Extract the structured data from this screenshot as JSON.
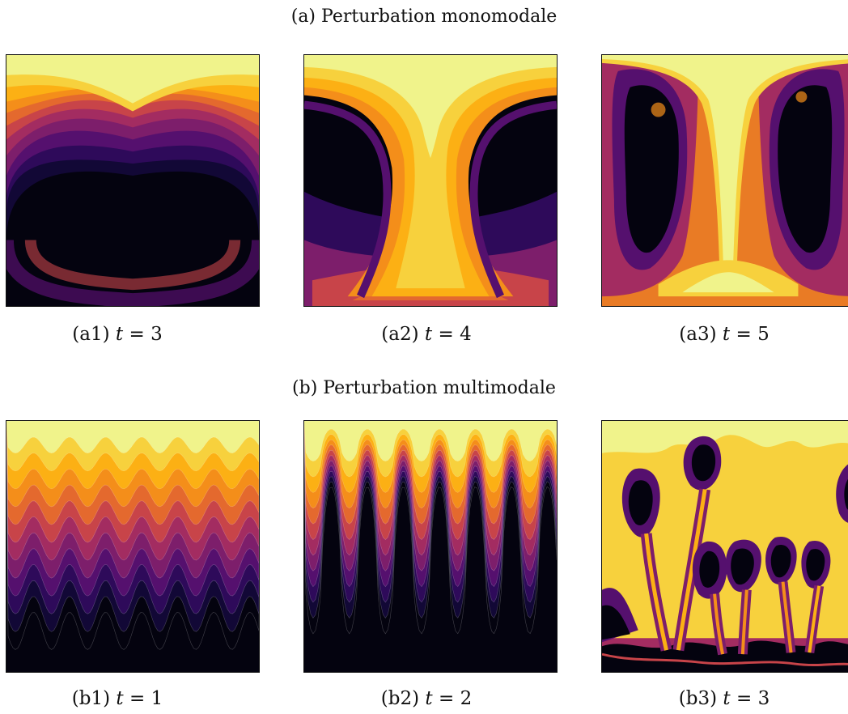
{
  "rows": [
    {
      "heading": "(a) Perturbation monomodale",
      "panels": [
        {
          "tag": "(a1)",
          "var": "t",
          "eq": " = ",
          "val": "3"
        },
        {
          "tag": "(a2)",
          "var": "t",
          "eq": " = ",
          "val": "4"
        },
        {
          "tag": "(a3)",
          "var": "t",
          "eq": " = ",
          "val": "5"
        }
      ]
    },
    {
      "heading": "(b) Perturbation multimodale",
      "panels": [
        {
          "tag": "(b1)",
          "var": "t",
          "eq": " = ",
          "val": "1"
        },
        {
          "tag": "(b2)",
          "var": "t",
          "eq": " = ",
          "val": "2"
        },
        {
          "tag": "(b3)",
          "var": "t",
          "eq": " = ",
          "val": "3"
        }
      ]
    }
  ],
  "colormap": [
    "#f0f38b",
    "#f7d13d",
    "#fcb014",
    "#f48e1a",
    "#e4692e",
    "#c84449",
    "#a32c61",
    "#7d1e6b",
    "#55106e",
    "#2e0a5a",
    "#120836",
    "#04030f"
  ]
}
